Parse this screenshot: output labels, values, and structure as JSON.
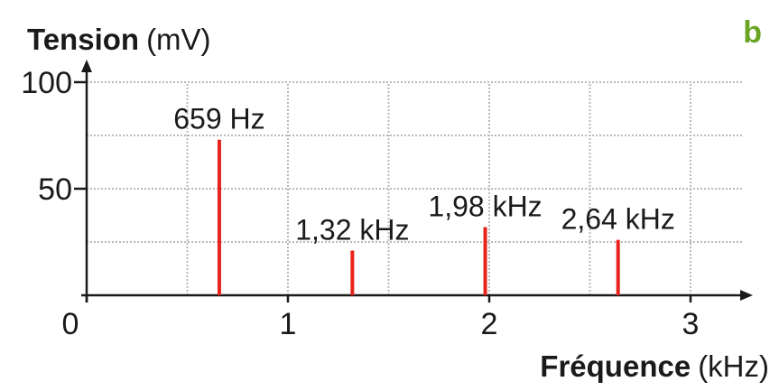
{
  "panel_label": "b",
  "colors": {
    "peak": "#e8231c",
    "grid": "#b9b9b9",
    "axis": "#1a1a1a",
    "panel_letter": "#6aa523"
  },
  "chart_data": {
    "type": "bar",
    "title": "",
    "ylabel": {
      "name": "Tension",
      "unit": "(mV)"
    },
    "xlabel": {
      "name": "Fréquence",
      "unit": "(kHz)"
    },
    "xlim": [
      0,
      3.25
    ],
    "ylim": [
      0,
      100
    ],
    "x_ticks": [
      {
        "value": 0,
        "label": "0"
      },
      {
        "value": 1,
        "label": "1"
      },
      {
        "value": 2,
        "label": "2"
      },
      {
        "value": 3,
        "label": "3"
      }
    ],
    "y_ticks": [
      {
        "value": 50,
        "label": "50"
      },
      {
        "value": 100,
        "label": "100"
      }
    ],
    "grid": {
      "x_step": 0.5,
      "y_step": 25,
      "style": "dotted"
    },
    "peaks": [
      {
        "x": 0.659,
        "y": 73,
        "label": "659 Hz"
      },
      {
        "x": 1.32,
        "y": 21,
        "label": "1,32 kHz"
      },
      {
        "x": 1.98,
        "y": 32,
        "label": "1,98 kHz"
      },
      {
        "x": 2.64,
        "y": 26,
        "label": "2,64 kHz"
      }
    ]
  }
}
